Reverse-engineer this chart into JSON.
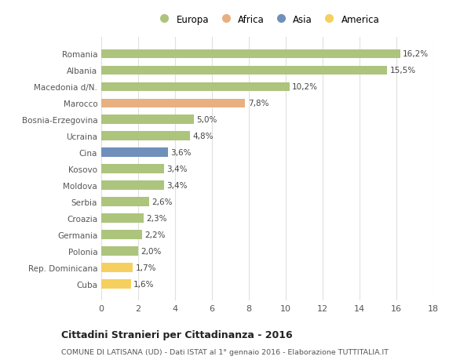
{
  "categories": [
    "Cuba",
    "Rep. Dominicana",
    "Polonia",
    "Germania",
    "Croazia",
    "Serbia",
    "Moldova",
    "Kosovo",
    "Cina",
    "Ucraina",
    "Bosnia-Erzegovina",
    "Marocco",
    "Macedonia d/N.",
    "Albania",
    "Romania"
  ],
  "values": [
    1.6,
    1.7,
    2.0,
    2.2,
    2.3,
    2.6,
    3.4,
    3.4,
    3.6,
    4.8,
    5.0,
    7.8,
    10.2,
    15.5,
    16.2
  ],
  "labels": [
    "1,6%",
    "1,7%",
    "2,0%",
    "2,2%",
    "2,3%",
    "2,6%",
    "3,4%",
    "3,4%",
    "3,6%",
    "4,8%",
    "5,0%",
    "7,8%",
    "10,2%",
    "15,5%",
    "16,2%"
  ],
  "colors": [
    "#f5d060",
    "#f5d060",
    "#adc47d",
    "#adc47d",
    "#adc47d",
    "#adc47d",
    "#adc47d",
    "#adc47d",
    "#7090bb",
    "#adc47d",
    "#adc47d",
    "#e8b080",
    "#adc47d",
    "#adc47d",
    "#adc47d"
  ],
  "legend_labels": [
    "Europa",
    "Africa",
    "Asia",
    "America"
  ],
  "legend_colors": [
    "#adc47d",
    "#e8b080",
    "#7090bb",
    "#f5d060"
  ],
  "title": "Cittadini Stranieri per Cittadinanza - 2016",
  "subtitle": "COMUNE DI LATISANA (UD) - Dati ISTAT al 1° gennaio 2016 - Elaborazione TUTTITALIA.IT",
  "xlim": [
    0,
    18
  ],
  "xticks": [
    0,
    2,
    4,
    6,
    8,
    10,
    12,
    14,
    16,
    18
  ],
  "background_color": "#ffffff",
  "grid_color": "#e0e0e0"
}
